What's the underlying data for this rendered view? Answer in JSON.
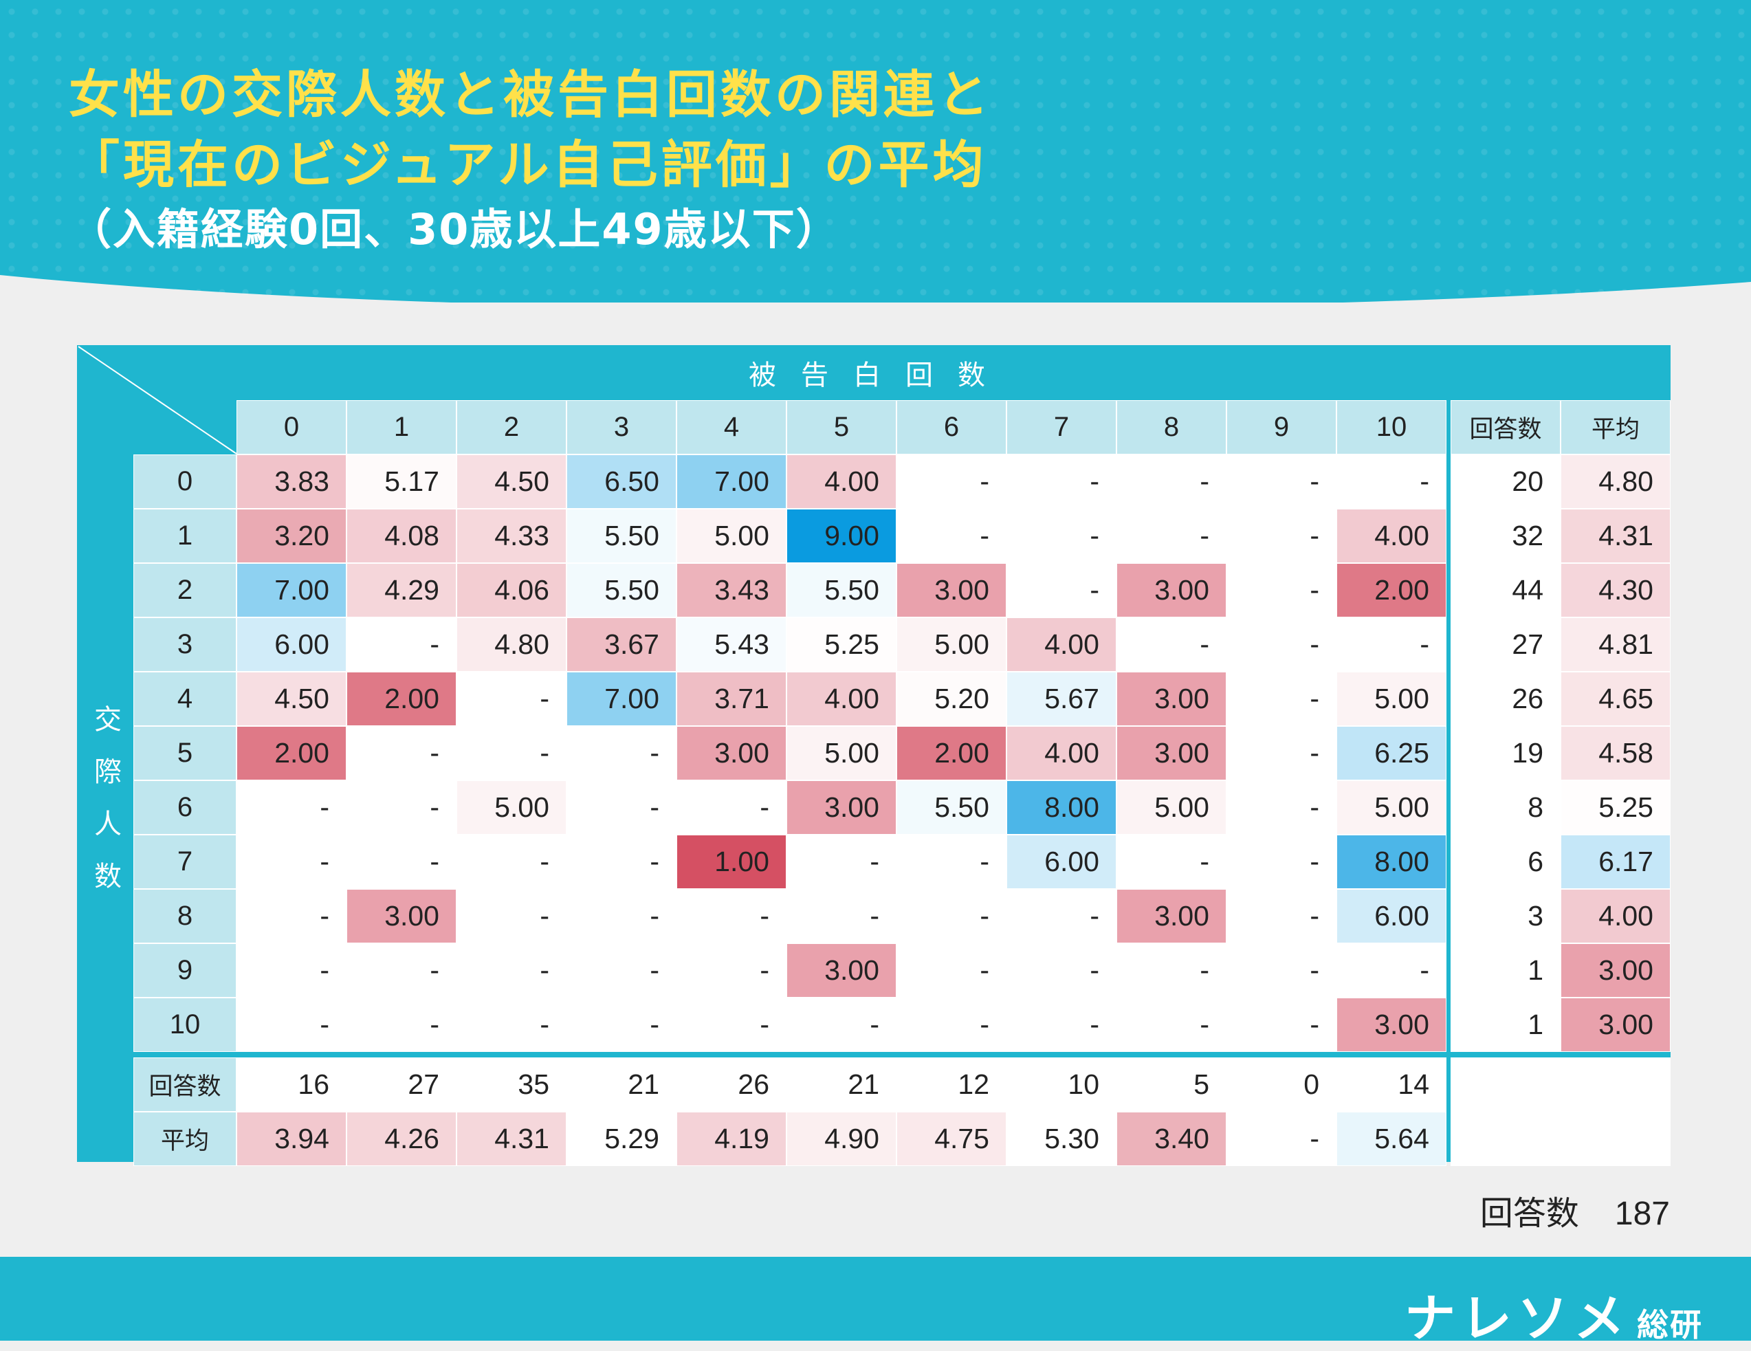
{
  "title": {
    "line1": "女性の交際人数と被告白回数の関連と",
    "line2": "「現在のビジュアル自己評価」の平均",
    "subtitle": "（入籍経験0回、30歳以上49歳以下）"
  },
  "chart_data": {
    "type": "heatmap",
    "col_axis_title": "被告白回数",
    "row_axis_title": "交際人数",
    "col_labels": [
      "0",
      "1",
      "2",
      "3",
      "4",
      "5",
      "6",
      "7",
      "8",
      "9",
      "10"
    ],
    "row_labels": [
      "0",
      "1",
      "2",
      "3",
      "4",
      "5",
      "6",
      "7",
      "8",
      "9",
      "10"
    ],
    "count_header": "回答数",
    "avg_header": "平均",
    "values": [
      [
        "3.83",
        "5.17",
        "4.50",
        "6.50",
        "7.00",
        "4.00",
        "-",
        "-",
        "-",
        "-",
        "-"
      ],
      [
        "3.20",
        "4.08",
        "4.33",
        "5.50",
        "5.00",
        "9.00",
        "-",
        "-",
        "-",
        "-",
        "4.00"
      ],
      [
        "7.00",
        "4.29",
        "4.06",
        "5.50",
        "3.43",
        "5.50",
        "3.00",
        "-",
        "3.00",
        "-",
        "2.00"
      ],
      [
        "6.00",
        "-",
        "4.80",
        "3.67",
        "5.43",
        "5.25",
        "5.00",
        "4.00",
        "-",
        "-",
        "-"
      ],
      [
        "4.50",
        "2.00",
        "-",
        "7.00",
        "3.71",
        "4.00",
        "5.20",
        "5.67",
        "3.00",
        "-",
        "5.00"
      ],
      [
        "2.00",
        "-",
        "-",
        "-",
        "3.00",
        "5.00",
        "2.00",
        "4.00",
        "3.00",
        "-",
        "6.25"
      ],
      [
        "-",
        "-",
        "5.00",
        "-",
        "-",
        "3.00",
        "5.50",
        "8.00",
        "5.00",
        "-",
        "5.00"
      ],
      [
        "-",
        "-",
        "-",
        "-",
        "1.00",
        "-",
        "-",
        "6.00",
        "-",
        "-",
        "8.00"
      ],
      [
        "-",
        "3.00",
        "-",
        "-",
        "-",
        "-",
        "-",
        "-",
        "3.00",
        "-",
        "6.00"
      ],
      [
        "-",
        "-",
        "-",
        "-",
        "-",
        "3.00",
        "-",
        "-",
        "-",
        "-",
        "-"
      ],
      [
        "-",
        "-",
        "-",
        "-",
        "-",
        "-",
        "-",
        "-",
        "-",
        "-",
        "3.00"
      ]
    ],
    "row_counts": [
      "20",
      "32",
      "44",
      "27",
      "26",
      "19",
      "8",
      "6",
      "3",
      "1",
      "1"
    ],
    "row_avgs": [
      "4.80",
      "4.31",
      "4.30",
      "4.81",
      "4.65",
      "4.58",
      "5.25",
      "6.17",
      "4.00",
      "3.00",
      "3.00"
    ],
    "col_counts": [
      "16",
      "27",
      "35",
      "21",
      "26",
      "21",
      "12",
      "10",
      "5",
      "0",
      "14"
    ],
    "col_avgs": [
      "3.94",
      "4.26",
      "4.31",
      "5.29",
      "4.19",
      "4.90",
      "4.75",
      "5.30",
      "3.40",
      "-",
      "5.64"
    ],
    "total_label": "回答数",
    "total_value": "187"
  },
  "brand": {
    "main": "ナレソメ",
    "sub": "総研"
  },
  "colors": {
    "header_bg": "#1fb6cf",
    "title_yellow": "#ffe14a",
    "low_red": "#d55063",
    "neutral": "#ffffff",
    "high_blue": "#0a9be0",
    "header_cell": "#bfe6ee"
  }
}
